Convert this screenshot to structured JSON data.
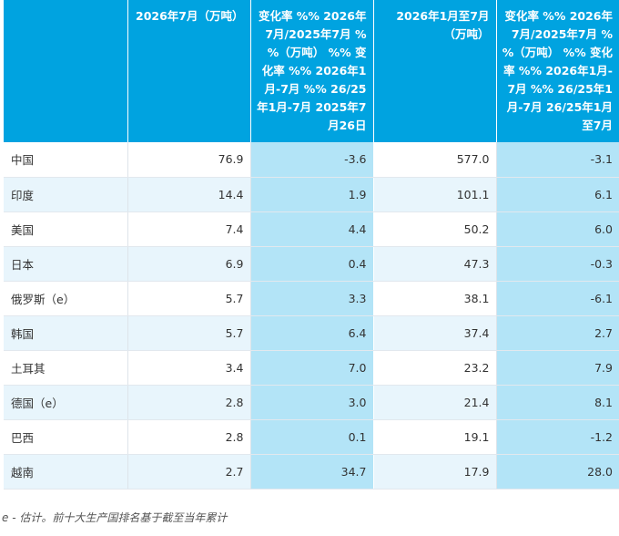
{
  "table": {
    "headers": [
      "",
      "2026年7月（万吨）",
      "变化率 %% 2026年7月/2025年7月 %%（万吨） %% 变化率 %% 2026年1月-7月 %% 26/25年1月-7月 2025年7月26日",
      "2026年1月至7月（万吨）",
      "变化率 %% 2026年7月/2025年7月 %%（万吨） %% 变化率 %% 2026年1月-7月 %% 26/25年1月-7月 26/25年1月至7月"
    ],
    "rows": [
      {
        "country": "中国",
        "jul": "76.9",
        "jul_change": "-3.6",
        "ytd": "577.0",
        "ytd_change": "-3.1"
      },
      {
        "country": "印度",
        "jul": "14.4",
        "jul_change": "1.9",
        "ytd": "101.1",
        "ytd_change": "6.1"
      },
      {
        "country": "美国",
        "jul": "7.4",
        "jul_change": "4.4",
        "ytd": "50.2",
        "ytd_change": "6.0"
      },
      {
        "country": "日本",
        "jul": "6.9",
        "jul_change": "0.4",
        "ytd": "47.3",
        "ytd_change": "-0.3"
      },
      {
        "country": "俄罗斯（e）",
        "jul": "5.7",
        "jul_change": "3.3",
        "ytd": "38.1",
        "ytd_change": "-6.1"
      },
      {
        "country": "韩国",
        "jul": "5.7",
        "jul_change": "6.4",
        "ytd": "37.4",
        "ytd_change": "2.7"
      },
      {
        "country": "土耳其",
        "jul": "3.4",
        "jul_change": "7.0",
        "ytd": "23.2",
        "ytd_change": "7.9"
      },
      {
        "country": "德国（e）",
        "jul": "2.8",
        "jul_change": "3.0",
        "ytd": "21.4",
        "ytd_change": "8.1"
      },
      {
        "country": "巴西",
        "jul": "2.8",
        "jul_change": "0.1",
        "ytd": "19.1",
        "ytd_change": "-1.2"
      },
      {
        "country": "越南",
        "jul": "2.7",
        "jul_change": "34.7",
        "ytd": "17.9",
        "ytd_change": "28.0"
      }
    ]
  },
  "footnote": "e - 估计。前十大生产国排名基于截至当年累计",
  "colors": {
    "header_bg": "#00a3e0",
    "change_col_bg": "#b3e4f7",
    "alt_row_bg": "#e8f5fc"
  }
}
